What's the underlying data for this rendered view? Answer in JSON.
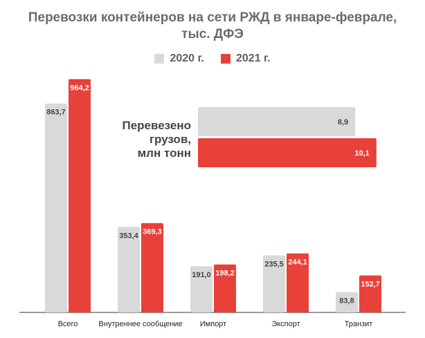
{
  "chart_data": {
    "type": "bar",
    "title_line1": "Перевозки контейнеров на сети РЖД в январе-феврале,",
    "title_line2": "тыс. ДФЭ",
    "series": [
      {
        "name": "2020 г.",
        "color": "#d9d9d9",
        "values": [
          863.7,
          353.4,
          191.0,
          235.5,
          83.8
        ],
        "labels": [
          "863,7",
          "353,4",
          "191,0",
          "235,5",
          "83,8"
        ]
      },
      {
        "name": "2021 г.",
        "color": "#e8413a",
        "values": [
          964.2,
          369.3,
          198.2,
          244.1,
          152.7
        ],
        "labels": [
          "964,2",
          "369,3",
          "198,2",
          "244,1",
          "152,7"
        ]
      }
    ],
    "categories": [
      "Всего",
      "Внутреннее сообщение",
      "Импорт",
      "Экспорт",
      "Транзит"
    ],
    "ylim": [
      0,
      1000
    ],
    "legend_position": "top-center",
    "inset": {
      "type": "bar",
      "orientation": "horizontal",
      "title_lines": [
        "Перевезено",
        "грузов,",
        "млн тонн"
      ],
      "values": [
        8.9,
        10.1
      ],
      "labels": [
        "8,9",
        "10,1"
      ],
      "xlim": [
        0,
        10.5
      ]
    }
  }
}
